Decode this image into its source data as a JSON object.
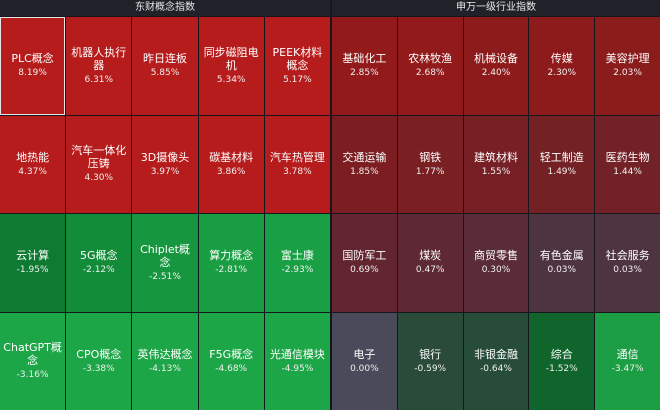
{
  "left": {
    "title": "东财概念指数",
    "tiles": [
      {
        "name": "PLC概念",
        "pct": "8.19%",
        "color": "#b71c1c",
        "selected": true
      },
      {
        "name": "机器人执行器",
        "pct": "6.31%",
        "color": "#b71c1c"
      },
      {
        "name": "昨日连板",
        "pct": "5.85%",
        "color": "#b71c1c"
      },
      {
        "name": "同步磁阻电机",
        "pct": "5.34%",
        "color": "#b71c1c"
      },
      {
        "name": "PEEK材料概念",
        "pct": "5.17%",
        "color": "#b71c1c"
      },
      {
        "name": "地热能",
        "pct": "4.37%",
        "color": "#b71c1c"
      },
      {
        "name": "汽车一体化压铸",
        "pct": "4.30%",
        "color": "#b71c1c"
      },
      {
        "name": "3D摄像头",
        "pct": "3.97%",
        "color": "#b71c1c"
      },
      {
        "name": "碳基材料",
        "pct": "3.86%",
        "color": "#b71c1c"
      },
      {
        "name": "汽车热管理",
        "pct": "3.78%",
        "color": "#b71c1c"
      },
      {
        "name": "云计算",
        "pct": "-1.95%",
        "color": "#0e7a32"
      },
      {
        "name": "5G概念",
        "pct": "-2.12%",
        "color": "#138c3a"
      },
      {
        "name": "Chiplet概念",
        "pct": "-2.51%",
        "color": "#16963e"
      },
      {
        "name": "算力概念",
        "pct": "-2.81%",
        "color": "#199e43"
      },
      {
        "name": "富士康",
        "pct": "-2.93%",
        "color": "#1aa044"
      },
      {
        "name": "ChatGPT概念",
        "pct": "-3.16%",
        "color": "#1ca647"
      },
      {
        "name": "CPO概念",
        "pct": "-3.38%",
        "color": "#1ca647"
      },
      {
        "name": "英伟达概念",
        "pct": "-4.13%",
        "color": "#1ca647"
      },
      {
        "name": "F5G概念",
        "pct": "-4.68%",
        "color": "#1ca647"
      },
      {
        "name": "光通信模块",
        "pct": "-4.95%",
        "color": "#1ca647"
      }
    ]
  },
  "right": {
    "title": "申万一级行业指数",
    "tiles": [
      {
        "name": "基础化工",
        "pct": "2.85%",
        "color": "#931a1a"
      },
      {
        "name": "农林牧渔",
        "pct": "2.68%",
        "color": "#931a1a"
      },
      {
        "name": "机械设备",
        "pct": "2.40%",
        "color": "#8e1b1b"
      },
      {
        "name": "传媒",
        "pct": "2.30%",
        "color": "#8e1b1b"
      },
      {
        "name": "美容护理",
        "pct": "2.03%",
        "color": "#8a1c1c"
      },
      {
        "name": "交通运输",
        "pct": "1.85%",
        "color": "#7c1e21"
      },
      {
        "name": "钢铁",
        "pct": "1.77%",
        "color": "#7a1f22"
      },
      {
        "name": "建筑材料",
        "pct": "1.55%",
        "color": "#762025"
      },
      {
        "name": "轻工制造",
        "pct": "1.49%",
        "color": "#742126"
      },
      {
        "name": "医药生物",
        "pct": "1.44%",
        "color": "#722227"
      },
      {
        "name": "国防军工",
        "pct": "0.69%",
        "color": "#632630"
      },
      {
        "name": "煤炭",
        "pct": "0.47%",
        "color": "#5e2934"
      },
      {
        "name": "商贸零售",
        "pct": "0.30%",
        "color": "#592c38"
      },
      {
        "name": "有色金属",
        "pct": "0.03%",
        "color": "#4e3440"
      },
      {
        "name": "社会服务",
        "pct": "0.03%",
        "color": "#4e3440"
      },
      {
        "name": "电子",
        "pct": "0.00%",
        "color": "#4a4a5a"
      },
      {
        "name": "银行",
        "pct": "-0.59%",
        "color": "#2a4a3a"
      },
      {
        "name": "非银金融",
        "pct": "-0.64%",
        "color": "#284c3a"
      },
      {
        "name": "综合",
        "pct": "-1.52%",
        "color": "#10652c"
      },
      {
        "name": "通信",
        "pct": "-3.47%",
        "color": "#1b9e44"
      }
    ]
  }
}
